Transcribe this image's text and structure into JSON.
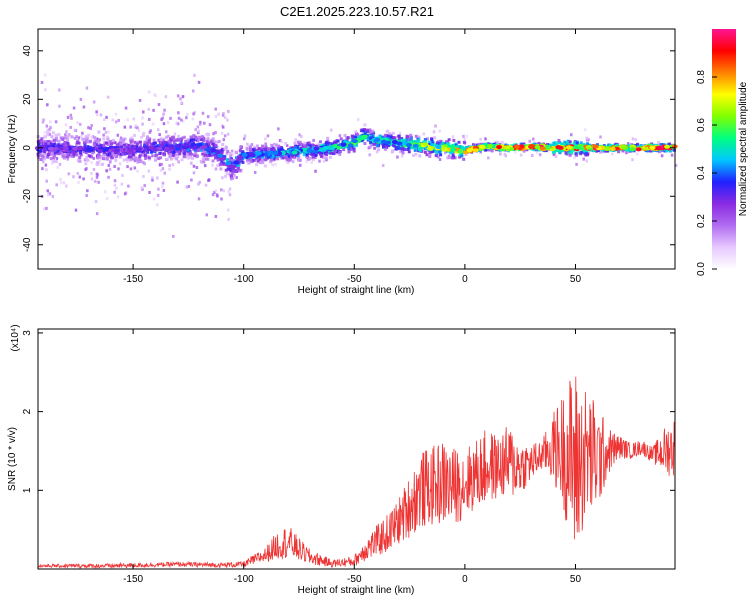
{
  "title": "C2E1.2025.223.10.57.R21",
  "colors": {
    "snr_line": "#ee3333",
    "axis": "#000000",
    "background": "#ffffff",
    "colormap": [
      "#ffffff",
      "#e6c8ff",
      "#b06cf0",
      "#8a2be2",
      "#2020ff",
      "#00c8ff",
      "#00ff80",
      "#80ff00",
      "#ffff00",
      "#ff8000",
      "#ff0000",
      "#ff1493"
    ]
  },
  "chart_data": [
    {
      "type": "heatmap",
      "xlabel": "Height of straight line (km)",
      "ylabel": "Frequency (Hz)",
      "xlim": [
        -193,
        95
      ],
      "ylim": [
        -50,
        49
      ],
      "x_ticks": [
        -150,
        -100,
        -50,
        0,
        50
      ],
      "y_ticks": [
        -40,
        -20,
        0,
        20,
        40
      ],
      "x_tick_labels": [
        "-150",
        "-100",
        "-50",
        "0",
        "50"
      ],
      "y_tick_labels": [
        "-40",
        "-20",
        "0",
        "20",
        "40"
      ],
      "colorbar": {
        "label": "Normalized spectral amplitude",
        "range": [
          0,
          1
        ],
        "ticks": [
          0.0,
          0.2,
          0.4,
          0.6,
          0.8
        ],
        "tick_labels": [
          "0.0",
          "0.2",
          "0.4",
          "0.6",
          "0.8"
        ]
      },
      "ridge": {
        "x": [
          -193,
          -150,
          -120,
          -112,
          -105,
          -100,
          -80,
          -60,
          -50,
          -45,
          -40,
          -30,
          -20,
          -10,
          0,
          10,
          20,
          30,
          40,
          50,
          60,
          70,
          80,
          95
        ],
        "y": [
          0,
          -1,
          1,
          -2,
          -8,
          -3,
          -2,
          0,
          2,
          5,
          3,
          2,
          1,
          0,
          -1,
          0.5,
          0,
          0.5,
          0,
          0,
          0,
          0,
          0,
          0
        ],
        "amplitude": [
          0.35,
          0.35,
          0.4,
          0.4,
          0.45,
          0.45,
          0.5,
          0.55,
          0.6,
          0.6,
          0.55,
          0.6,
          0.7,
          0.75,
          0.85,
          0.8,
          0.95,
          0.95,
          0.95,
          0.9,
          0.95,
          0.95,
          0.95,
          0.95
        ]
      }
    },
    {
      "type": "line",
      "xlabel": "Height of straight line (km)",
      "ylabel": "SNR (10 * v/v)",
      "y_scale_label": "(x10⁴)",
      "xlim": [
        -193,
        95
      ],
      "ylim": [
        0,
        3.05
      ],
      "x_ticks": [
        -150,
        -100,
        -50,
        0,
        50
      ],
      "y_ticks": [
        1,
        2,
        3
      ],
      "x_tick_labels": [
        "-150",
        "-100",
        "-50",
        "0",
        "50"
      ],
      "y_tick_labels": [
        "1",
        "2",
        "3"
      ],
      "envelope": {
        "x": [
          -193,
          -160,
          -130,
          -110,
          -100,
          -90,
          -85,
          -80,
          -75,
          -70,
          -60,
          -50,
          -45,
          -40,
          -35,
          -30,
          -25,
          -20,
          -15,
          -10,
          -5,
          0,
          5,
          10,
          15,
          20,
          25,
          30,
          35,
          40,
          45,
          48,
          50,
          52,
          55,
          60,
          65,
          70,
          75,
          80,
          85,
          90,
          95
        ],
        "center": [
          0.04,
          0.04,
          0.06,
          0.05,
          0.06,
          0.18,
          0.3,
          0.35,
          0.25,
          0.15,
          0.07,
          0.1,
          0.25,
          0.35,
          0.45,
          0.6,
          0.8,
          1.0,
          1.05,
          1.1,
          1.05,
          1.1,
          1.2,
          1.3,
          1.3,
          1.35,
          1.3,
          1.35,
          1.45,
          1.55,
          1.5,
          1.4,
          1.3,
          1.35,
          1.45,
          1.4,
          1.5,
          1.55,
          1.5,
          1.55,
          1.45,
          1.5,
          1.55
        ],
        "spread": [
          0.02,
          0.03,
          0.03,
          0.03,
          0.04,
          0.1,
          0.18,
          0.22,
          0.15,
          0.1,
          0.05,
          0.07,
          0.15,
          0.2,
          0.25,
          0.3,
          0.4,
          0.5,
          0.5,
          0.55,
          0.5,
          0.45,
          0.45,
          0.5,
          0.4,
          0.5,
          0.35,
          0.25,
          0.2,
          0.45,
          0.8,
          1.1,
          1.3,
          1.0,
          0.9,
          0.7,
          0.3,
          0.15,
          0.1,
          0.1,
          0.1,
          0.3,
          0.4
        ]
      }
    }
  ]
}
